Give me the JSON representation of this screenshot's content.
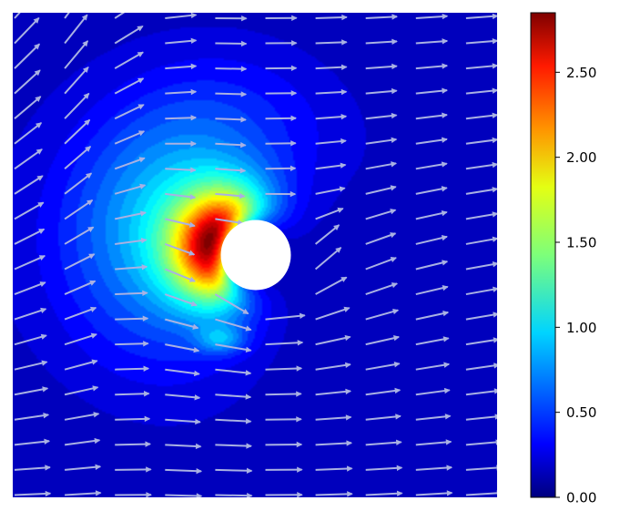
{
  "chart_data": {
    "type": "heatmap",
    "subtype": "filled contour with vector field overlay",
    "title": "",
    "xlabel": "",
    "ylabel": "",
    "x_axis_visible": false,
    "y_axis_visible": false,
    "grid": false,
    "colormap": "jet",
    "colorbar": {
      "placement": "right",
      "range": [
        0.0,
        2.85
      ],
      "ticks": [
        0.0,
        0.5,
        1.0,
        1.5,
        2.0,
        2.5
      ],
      "tick_labels": [
        "0.00",
        "0.50",
        "1.00",
        "1.50",
        "2.00",
        "2.50"
      ]
    },
    "field": {
      "domain_x": [
        -1.0,
        1.0
      ],
      "domain_y": [
        -1.0,
        1.0
      ],
      "obstacle": {
        "shape": "circle",
        "center": [
          0.0,
          0.0
        ],
        "radius": 0.145
      },
      "max_value": 2.85,
      "max_location": [
        -0.26,
        0.07
      ],
      "background_value": 0.0,
      "features": [
        {
          "description": "crescent-shaped high region wrapping the left side of the obstacle",
          "peak": 2.85
        },
        {
          "description": "broad low-magnitude halo extending up-left and down-left",
          "value": 0.3
        },
        {
          "description": "weak secondary lobe below-left of the obstacle",
          "value": 0.45
        }
      ]
    },
    "vectors": {
      "color": "#a9b1e3",
      "style": "quiver",
      "description": "upward flow on left side, diverging up-right on the right side, diagonal down-right flow near bottom"
    }
  }
}
